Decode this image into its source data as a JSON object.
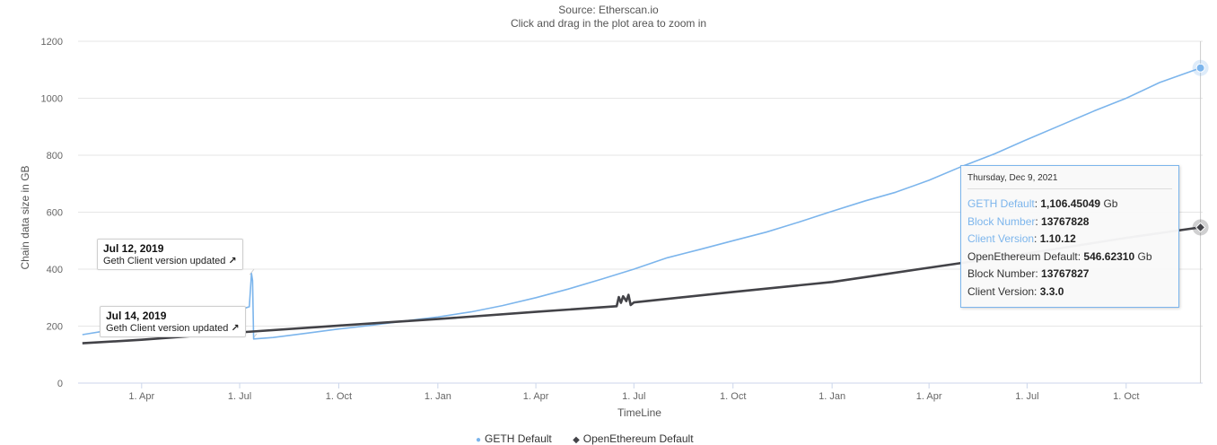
{
  "header": {
    "source": "Source: Etherscan.io",
    "zoom_hint": "Click and drag in the plot area to zoom in"
  },
  "colors": {
    "geth": "#7cb5ec",
    "openethereum": "#434348",
    "grid": "#e6e6e6",
    "axis": "#ccd6eb"
  },
  "chart_data": {
    "type": "line",
    "xlabel": "TimeLine",
    "ylabel": "Chain data size in GB",
    "ylim": [
      0,
      1200
    ],
    "xlim": [
      "2019-02-01",
      "2021-12-11"
    ],
    "y_ticks": [
      0,
      200,
      400,
      600,
      800,
      1000,
      1200
    ],
    "x_ticks": [
      {
        "date": "2019-04-01",
        "label": "1. Apr"
      },
      {
        "date": "2019-07-01",
        "label": "1. Jul"
      },
      {
        "date": "2019-10-01",
        "label": "1. Oct"
      },
      {
        "date": "2020-01-01",
        "label": "1. Jan"
      },
      {
        "date": "2020-04-01",
        "label": "1. Apr"
      },
      {
        "date": "2020-07-01",
        "label": "1. Jul"
      },
      {
        "date": "2020-10-01",
        "label": "1. Oct"
      },
      {
        "date": "2021-01-01",
        "label": "1. Jan"
      },
      {
        "date": "2021-04-01",
        "label": "1. Apr"
      },
      {
        "date": "2021-07-01",
        "label": "1. Jul"
      },
      {
        "date": "2021-10-01",
        "label": "1. Oct"
      }
    ],
    "series": [
      {
        "name": "GETH Default",
        "color": "#7cb5ec",
        "points": [
          [
            "2019-02-05",
            170
          ],
          [
            "2019-03-01",
            185
          ],
          [
            "2019-04-01",
            205
          ],
          [
            "2019-05-01",
            225
          ],
          [
            "2019-06-01",
            245
          ],
          [
            "2019-07-05",
            262
          ],
          [
            "2019-07-10",
            268
          ],
          [
            "2019-07-12",
            385
          ],
          [
            "2019-07-13",
            360
          ],
          [
            "2019-07-14",
            155
          ],
          [
            "2019-08-01",
            160
          ],
          [
            "2019-09-01",
            175
          ],
          [
            "2019-10-01",
            190
          ],
          [
            "2019-11-01",
            203
          ],
          [
            "2019-12-01",
            218
          ],
          [
            "2020-01-01",
            232
          ],
          [
            "2020-02-01",
            250
          ],
          [
            "2020-03-01",
            272
          ],
          [
            "2020-04-01",
            300
          ],
          [
            "2020-05-01",
            330
          ],
          [
            "2020-06-01",
            365
          ],
          [
            "2020-07-01",
            400
          ],
          [
            "2020-08-01",
            440
          ],
          [
            "2020-09-01",
            470
          ],
          [
            "2020-10-01",
            500
          ],
          [
            "2020-11-01",
            530
          ],
          [
            "2020-12-01",
            565
          ],
          [
            "2021-01-01",
            603
          ],
          [
            "2021-02-01",
            640
          ],
          [
            "2021-03-01",
            670
          ],
          [
            "2021-04-01",
            712
          ],
          [
            "2021-05-01",
            760
          ],
          [
            "2021-06-01",
            805
          ],
          [
            "2021-07-01",
            855
          ],
          [
            "2021-08-01",
            905
          ],
          [
            "2021-09-01",
            955
          ],
          [
            "2021-10-01",
            1000
          ],
          [
            "2021-11-01",
            1055
          ],
          [
            "2021-12-09",
            1106.45
          ]
        ]
      },
      {
        "name": "OpenEthereum Default",
        "color": "#434348",
        "points": [
          [
            "2019-02-05",
            140
          ],
          [
            "2019-04-01",
            152
          ],
          [
            "2019-07-01",
            178
          ],
          [
            "2019-10-01",
            202
          ],
          [
            "2020-01-01",
            225
          ],
          [
            "2020-04-01",
            250
          ],
          [
            "2020-06-15",
            270
          ],
          [
            "2020-06-17",
            302
          ],
          [
            "2020-06-19",
            282
          ],
          [
            "2020-06-21",
            305
          ],
          [
            "2020-06-24",
            288
          ],
          [
            "2020-06-26",
            310
          ],
          [
            "2020-06-28",
            274
          ],
          [
            "2020-07-01",
            283
          ],
          [
            "2020-10-01",
            320
          ],
          [
            "2021-01-01",
            355
          ],
          [
            "2021-04-01",
            405
          ],
          [
            "2021-07-01",
            455
          ],
          [
            "2021-10-01",
            510
          ],
          [
            "2021-12-09",
            546.62
          ]
        ]
      }
    ],
    "annotations": [
      {
        "date": "Jul 12, 2019",
        "text": "Geth Client version updated",
        "target": "2019-07-12"
      },
      {
        "date": "Jul 14, 2019",
        "text": "Geth Client version updated",
        "target": "2019-07-14"
      }
    ],
    "legend": [
      "GETH Default",
      "OpenEthereum Default"
    ],
    "grid": true,
    "legend_placement": "bottom"
  },
  "tooltip": {
    "date": "Thursday, Dec 9, 2021",
    "geth_label": "GETH Default",
    "geth_value": "1,106.45049",
    "geth_unit": "Gb",
    "geth_block_label": "Block Number",
    "geth_block": "13767828",
    "geth_client_label": "Client Version",
    "geth_client": "1.10.12",
    "oe_label": "OpenEthereum Default",
    "oe_value": "546.62310",
    "oe_unit": "Gb",
    "oe_block_label": "Block Number",
    "oe_block": "13767827",
    "oe_client_label": "Client Version",
    "oe_client": "3.3.0"
  }
}
